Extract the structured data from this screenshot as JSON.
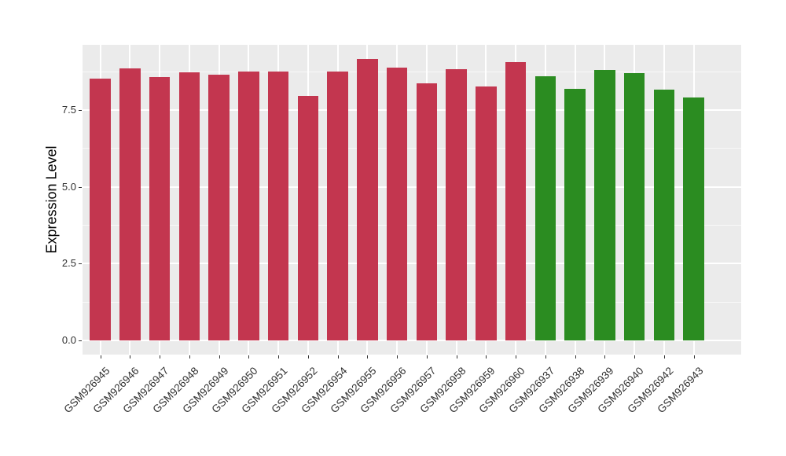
{
  "chart_data": {
    "type": "bar",
    "title": "",
    "xlabel": "",
    "ylabel": "Expression Level",
    "ylim": [
      -0.46,
      9.62
    ],
    "yticks": [
      0.0,
      2.5,
      5.0,
      7.5
    ],
    "ytick_labels": [
      "0.0",
      "2.5",
      "5.0",
      "7.5"
    ],
    "yticks_minor": [
      1.25,
      3.75,
      6.25,
      8.75
    ],
    "grid": true,
    "legend": "none",
    "panel_bg": "#EBEBEB",
    "grid_color": "#FFFFFF",
    "group_colors": {
      "red": "#C3364F",
      "green": "#2B8C21"
    },
    "bars": [
      {
        "label": "GSM926945",
        "value": 8.53,
        "group": "red"
      },
      {
        "label": "GSM926946",
        "value": 8.85,
        "group": "red"
      },
      {
        "label": "GSM926947",
        "value": 8.58,
        "group": "red"
      },
      {
        "label": "GSM926948",
        "value": 8.72,
        "group": "red"
      },
      {
        "label": "GSM926949",
        "value": 8.66,
        "group": "red"
      },
      {
        "label": "GSM926950",
        "value": 8.76,
        "group": "red"
      },
      {
        "label": "GSM926951",
        "value": 8.76,
        "group": "red"
      },
      {
        "label": "GSM926952",
        "value": 7.95,
        "group": "red"
      },
      {
        "label": "GSM926954",
        "value": 8.74,
        "group": "red"
      },
      {
        "label": "GSM926955",
        "value": 9.16,
        "group": "red"
      },
      {
        "label": "GSM926956",
        "value": 8.88,
        "group": "red"
      },
      {
        "label": "GSM926957",
        "value": 8.37,
        "group": "red"
      },
      {
        "label": "GSM926958",
        "value": 8.83,
        "group": "red"
      },
      {
        "label": "GSM926959",
        "value": 8.26,
        "group": "red"
      },
      {
        "label": "GSM926960",
        "value": 9.05,
        "group": "red"
      },
      {
        "label": "GSM926937",
        "value": 8.6,
        "group": "green"
      },
      {
        "label": "GSM926938",
        "value": 8.19,
        "group": "green"
      },
      {
        "label": "GSM926939",
        "value": 8.79,
        "group": "green"
      },
      {
        "label": "GSM926940",
        "value": 8.69,
        "group": "green"
      },
      {
        "label": "GSM926942",
        "value": 8.15,
        "group": "green"
      },
      {
        "label": "GSM926943",
        "value": 7.9,
        "group": "green"
      }
    ]
  }
}
